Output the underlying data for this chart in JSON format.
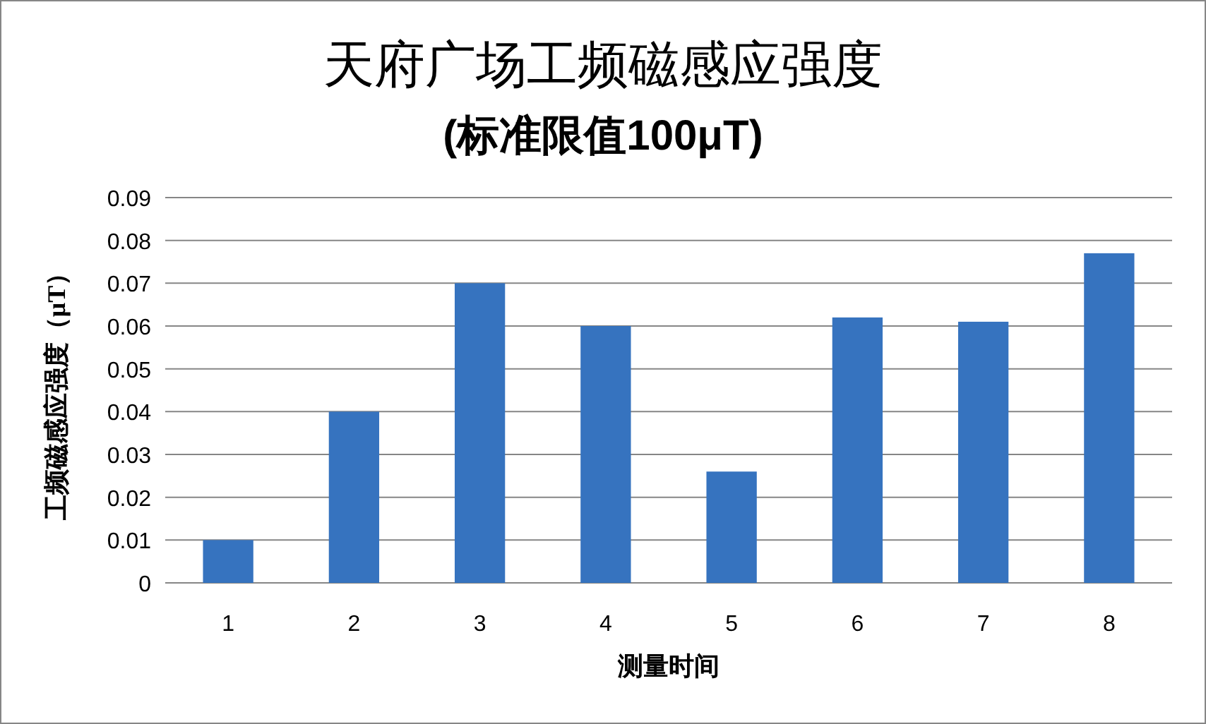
{
  "chart_data": {
    "type": "bar",
    "title": "天府广场工频磁感应强度",
    "subtitle": "(标准限值100μT)",
    "xlabel": "测量时间",
    "ylabel": "工频磁感应强度（μT）",
    "categories": [
      "1",
      "2",
      "3",
      "4",
      "5",
      "6",
      "7",
      "8"
    ],
    "values": [
      0.01,
      0.04,
      0.07,
      0.06,
      0.026,
      0.062,
      0.061,
      0.077
    ],
    "color": "#3673bf",
    "ylim": [
      0,
      0.09
    ],
    "yticks": [
      {
        "value": 0,
        "label": "0"
      },
      {
        "value": 0.01,
        "label": "0.01"
      },
      {
        "value": 0.02,
        "label": "0.02"
      },
      {
        "value": 0.03,
        "label": "0.03"
      },
      {
        "value": 0.04,
        "label": "0.04"
      },
      {
        "value": 0.05,
        "label": "0.05"
      },
      {
        "value": 0.06,
        "label": "0.06"
      },
      {
        "value": 0.07,
        "label": "0.07"
      },
      {
        "value": 0.08,
        "label": "0.08"
      },
      {
        "value": 0.09,
        "label": "0.09"
      }
    ],
    "grid": "y"
  }
}
